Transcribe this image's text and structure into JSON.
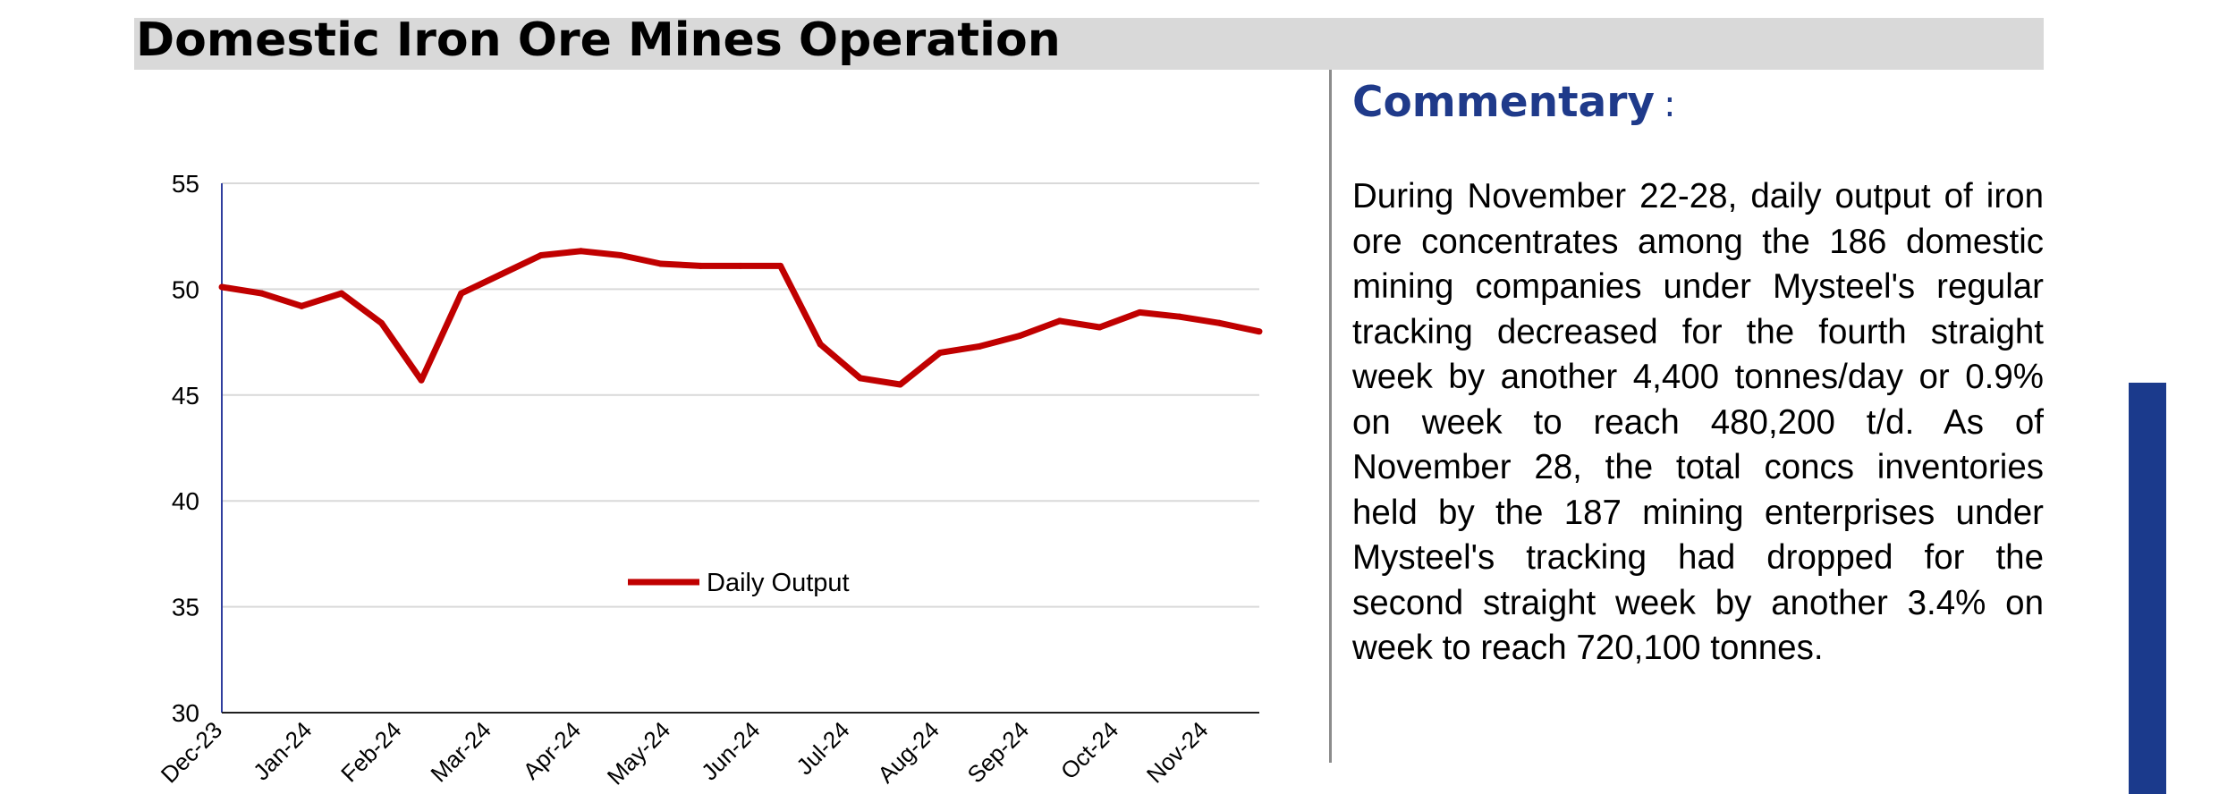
{
  "header": {
    "title": "Domestic Iron Ore Mines Operation"
  },
  "commentary": {
    "title": "Commentary",
    "colon": ":",
    "body": "During November 22-28, daily output of iron ore concentrates among the 186 domestic mining companies under Mysteel's regular tracking decreased for the fourth straight week by another 4,400 tonnes/day or 0.9% on week to reach 480,200 t/d. As of November 28, the total concs inventories held by the 187 mining enterprises under Mysteel's tracking had dropped for the second straight week by another 3.4% on week to reach 720,100 tonnes."
  },
  "colors": {
    "series": "#c00000",
    "commentary_title": "#1f3a8a",
    "side_bar": "#1b3a8c",
    "axis_line": "#2f3e9e",
    "grid": "#d9d9d9"
  },
  "chart_data": {
    "type": "line",
    "title": "",
    "xlabel": "",
    "ylabel": "",
    "ylim": [
      30,
      55
    ],
    "yticks": [
      "55",
      "50",
      "45",
      "40",
      "35",
      "30"
    ],
    "xticks": [
      "Dec-23",
      "Jan-24",
      "Feb-24",
      "Mar-24",
      "Apr-24",
      "May-24",
      "Jun-24",
      "Jul-24",
      "Aug-24",
      "Sep-24",
      "Oct-24",
      "Nov-24"
    ],
    "grid": true,
    "legend": "center",
    "series": [
      {
        "name": "Daily Output",
        "values": [
          50.1,
          49.8,
          49.2,
          49.8,
          48.4,
          45.7,
          49.8,
          50.7,
          51.6,
          51.8,
          51.6,
          51.2,
          51.1,
          51.1,
          51.1,
          47.4,
          45.8,
          45.5,
          47.0,
          47.3,
          47.8,
          48.5,
          48.2,
          48.9,
          48.7,
          48.4,
          48.0
        ]
      }
    ]
  }
}
